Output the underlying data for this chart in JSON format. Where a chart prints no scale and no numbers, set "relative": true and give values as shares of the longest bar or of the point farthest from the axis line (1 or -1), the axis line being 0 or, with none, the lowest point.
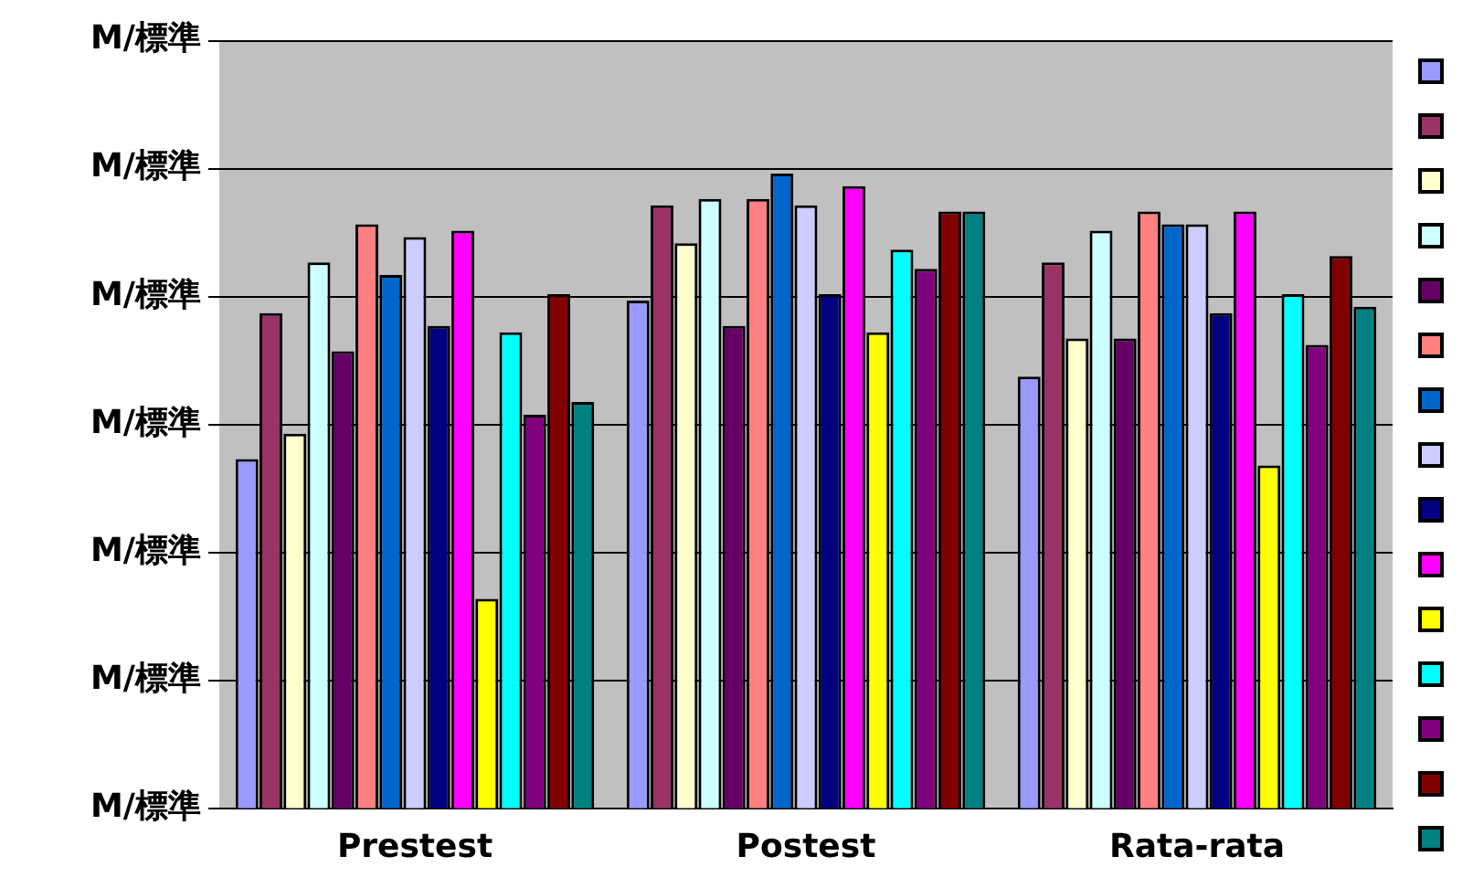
{
  "chart_data": {
    "type": "bar",
    "categories": [
      "Prestest",
      "Postest",
      "Rata-rata"
    ],
    "relative": true,
    "annotations": [
      "M/標準",
      "M/標準",
      "M/標準",
      "M/標準",
      "M/標準",
      "M/標準",
      "M/標準"
    ],
    "grid": "y",
    "series": [
      {
        "color": "#9999ff",
        "values": [
          0.55,
          0.8,
          0.68
        ]
      },
      {
        "color": "#993366",
        "values": [
          0.78,
          0.95,
          0.86
        ]
      },
      {
        "color": "#ffffcc",
        "values": [
          0.59,
          0.89,
          0.74
        ]
      },
      {
        "color": "#ccffff",
        "values": [
          0.86,
          0.96,
          0.91
        ]
      },
      {
        "color": "#660066",
        "values": [
          0.72,
          0.76,
          0.74
        ]
      },
      {
        "color": "#ff8080",
        "values": [
          0.92,
          0.96,
          0.94
        ]
      },
      {
        "color": "#0066cc",
        "values": [
          0.84,
          1,
          0.92
        ]
      },
      {
        "color": "#ccccff",
        "values": [
          0.9,
          0.95,
          0.92
        ]
      },
      {
        "color": "#000080",
        "values": [
          0.76,
          0.81,
          0.78
        ]
      },
      {
        "color": "#ff00ff",
        "values": [
          0.91,
          0.98,
          0.94
        ]
      },
      {
        "color": "#ffff00",
        "values": [
          0.33,
          0.75,
          0.54
        ]
      },
      {
        "color": "#00ffff",
        "values": [
          0.75,
          0.88,
          0.81
        ]
      },
      {
        "color": "#800080",
        "values": [
          0.62,
          0.85,
          0.73
        ]
      },
      {
        "color": "#800000",
        "values": [
          0.81,
          0.94,
          0.87
        ]
      },
      {
        "color": "#008080",
        "values": [
          0.64,
          0.94,
          0.79
        ]
      }
    ]
  }
}
